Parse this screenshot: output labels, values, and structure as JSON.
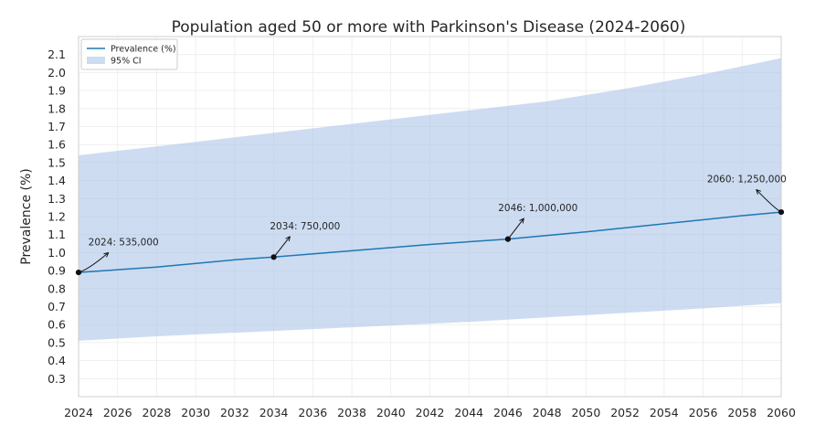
{
  "chart_data": {
    "type": "line",
    "title": "Population aged 50 or more with Parkinson's Disease (2024-2060)",
    "xlabel": "",
    "ylabel": "Prevalence (%)",
    "xlim": [
      2024,
      2060
    ],
    "ylim": [
      0.2,
      2.2
    ],
    "x_ticks": [
      2024,
      2026,
      2028,
      2030,
      2032,
      2034,
      2036,
      2038,
      2040,
      2042,
      2044,
      2046,
      2048,
      2050,
      2052,
      2054,
      2056,
      2058,
      2060
    ],
    "y_ticks": [
      0.3,
      0.4,
      0.5,
      0.6,
      0.7,
      0.8,
      0.9,
      1.0,
      1.1,
      1.2,
      1.3,
      1.4,
      1.5,
      1.6,
      1.7,
      1.8,
      1.9,
      2.0,
      2.1
    ],
    "grid": true,
    "legend_position": "top-left",
    "colors": {
      "line": "#1f77b4",
      "band": "#aec7e8",
      "points": "#111111"
    },
    "series": [
      {
        "name": "Prevalence (%)",
        "x": [
          2024,
          2028,
          2032,
          2034,
          2038,
          2042,
          2046,
          2050,
          2054,
          2058,
          2060
        ],
        "values": [
          0.89,
          0.92,
          0.96,
          0.975,
          1.01,
          1.045,
          1.075,
          1.115,
          1.16,
          1.205,
          1.225
        ]
      },
      {
        "name": "95% CI",
        "x": [
          2024,
          2028,
          2032,
          2036,
          2040,
          2044,
          2048,
          2052,
          2056,
          2060
        ],
        "lower": [
          0.51,
          0.535,
          0.555,
          0.575,
          0.595,
          0.615,
          0.64,
          0.665,
          0.69,
          0.72
        ],
        "upper": [
          1.54,
          1.59,
          1.64,
          1.69,
          1.74,
          1.79,
          1.84,
          1.91,
          1.99,
          2.08
        ]
      }
    ],
    "annotations": [
      {
        "x": 2024,
        "y": 0.89,
        "text": "2024: 535,000",
        "text_x": 2024.5,
        "text_y": 1.04,
        "anchor": "start"
      },
      {
        "x": 2034,
        "y": 0.975,
        "text": "2034: 750,000",
        "text_x": 2033.8,
        "text_y": 1.13,
        "anchor": "start"
      },
      {
        "x": 2046,
        "y": 1.075,
        "text": "2046: 1,000,000",
        "text_x": 2045.5,
        "text_y": 1.23,
        "anchor": "start"
      },
      {
        "x": 2060,
        "y": 1.225,
        "text": "2060: 1,250,000",
        "text_x": 2056.2,
        "text_y": 1.39,
        "anchor": "start"
      }
    ]
  }
}
